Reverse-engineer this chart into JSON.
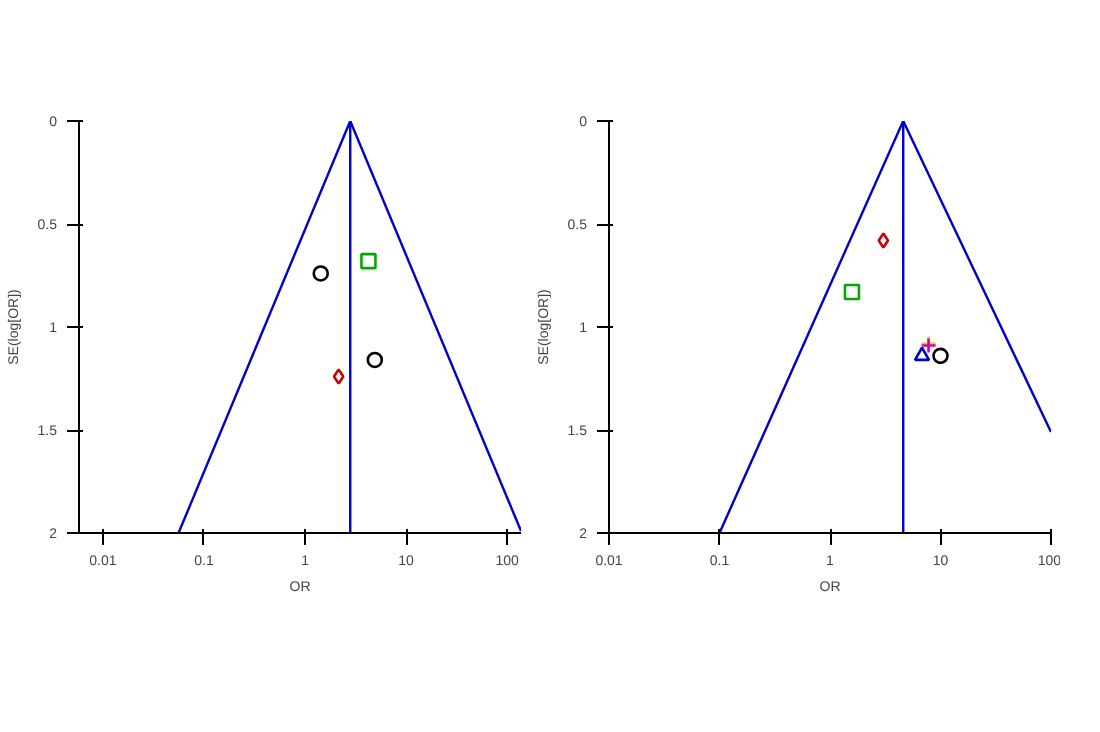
{
  "chart_data": [
    {
      "type": "scatter",
      "ylabel": "SE(log[OR])",
      "xlabel": "OR",
      "log": "x",
      "xlim": [
        0.0058,
        137
      ],
      "ylim": [
        2,
        0
      ],
      "xticks": [
        0.01,
        0.1,
        1,
        10,
        100
      ],
      "yticks": [
        0,
        0.5,
        1,
        1.5,
        2
      ],
      "grid": false,
      "series": [
        {
          "type": "line",
          "color": "#0000cc",
          "x": [
            0.056,
            2.8,
            137
          ],
          "values": [
            2,
            0,
            1.99
          ]
        },
        {
          "type": "line",
          "color": "#0000cc",
          "x": [
            2.8,
            2.8
          ],
          "values": [
            0,
            2
          ]
        },
        {
          "color": "#000000",
          "marker": "circle",
          "x": [
            1.43,
            4.9
          ],
          "values": [
            0.74,
            1.16
          ]
        },
        {
          "color": "#cc0000",
          "marker": "diamond",
          "x": [
            2.15
          ],
          "values": [
            1.24
          ]
        },
        {
          "color": "#00aa00",
          "marker": "square",
          "x": [
            4.24
          ],
          "values": [
            0.68
          ]
        }
      ]
    },
    {
      "type": "scatter",
      "ylabel": "SE(log[OR])",
      "xlabel": "OR",
      "log": "x",
      "xlim": [
        0.01,
        100
      ],
      "ylim": [
        2,
        0
      ],
      "xticks": [
        0.01,
        0.1,
        1,
        10,
        100
      ],
      "yticks": [
        0,
        0.5,
        1,
        1.5,
        2
      ],
      "grid": false,
      "series": [
        {
          "type": "line",
          "color": "#0000cc",
          "x": [
            0.1,
            4.6,
            100
          ],
          "values": [
            2,
            0,
            1.51
          ]
        },
        {
          "type": "line",
          "color": "#0000cc",
          "x": [
            4.6,
            4.6
          ],
          "values": [
            0,
            2
          ]
        },
        {
          "color": "#000000",
          "marker": "circle",
          "x": [
            10
          ],
          "values": [
            1.14
          ]
        },
        {
          "color": "#cc0000",
          "marker": "diamond",
          "x": [
            3.04
          ],
          "values": [
            0.58
          ]
        },
        {
          "color": "#00aa00",
          "marker": "square",
          "x": [
            1.58
          ],
          "values": [
            0.83
          ]
        },
        {
          "color": "#0000cc",
          "marker": "triangle",
          "x": [
            6.8
          ],
          "values": [
            1.14
          ]
        },
        {
          "color": "#dddd00",
          "marker": "cross",
          "x": [
            7.8
          ],
          "values": [
            1.08
          ]
        },
        {
          "color": "#cc00cc",
          "marker": "cross",
          "x": [
            7.8
          ],
          "values": [
            1.09
          ]
        }
      ]
    }
  ]
}
